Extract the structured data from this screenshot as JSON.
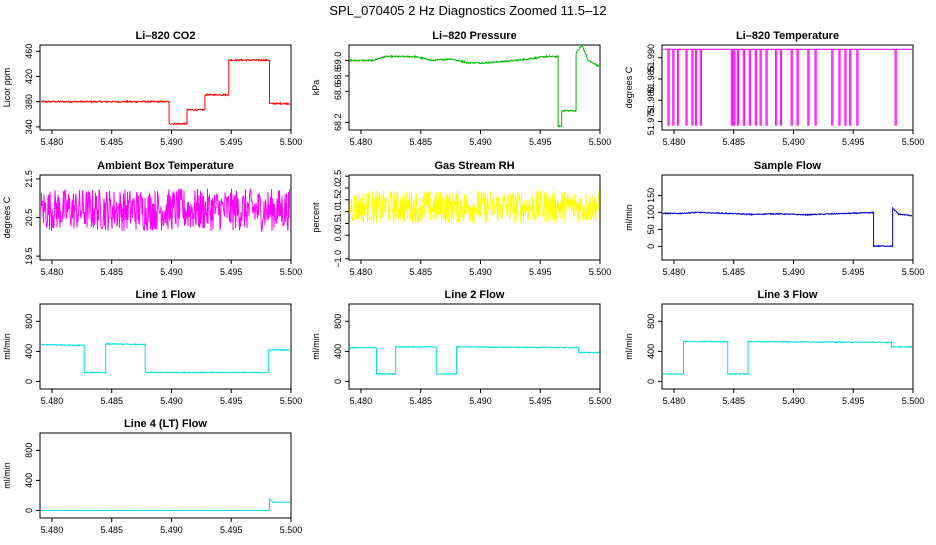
{
  "figure": {
    "title": "SPL_070405  2 Hz Diagnostics Zoomed 11.5–12"
  },
  "chart_data": [
    {
      "type": "line",
      "title": "Li–820 CO2",
      "ylabel": "Licor ppm",
      "color": "#ff0000",
      "xlim": [
        5.479,
        5.5
      ],
      "ylim": [
        335,
        470
      ],
      "xticks": [
        "5.480",
        "5.485",
        "5.490",
        "5.495",
        "5.500"
      ],
      "yticks": [
        "340",
        "380",
        "420",
        "460"
      ],
      "series": [
        {
          "segments": [
            [
              5.479,
              380
            ],
            [
              5.4898,
              380
            ],
            [
              5.4898,
              345
            ],
            [
              5.4913,
              345
            ],
            [
              5.4913,
              367
            ],
            [
              5.4928,
              367
            ],
            [
              5.4928,
              391
            ],
            [
              5.4948,
              391
            ],
            [
              5.4948,
              446
            ],
            [
              5.4982,
              446
            ],
            [
              5.4982,
              377
            ],
            [
              5.5,
              377
            ]
          ],
          "noise": 1.2
        }
      ]
    },
    {
      "type": "line",
      "title": "Li–820 Pressure",
      "ylabel": "kPa",
      "color": "#00bb00",
      "xlim": [
        5.479,
        5.5
      ],
      "ylim": [
        68.1,
        69.2
      ],
      "xticks": [
        "5.480",
        "5.485",
        "5.490",
        "5.495",
        "5.500"
      ],
      "yticks": [
        "68.2",
        "68.6",
        "68.8",
        "69.0"
      ],
      "series": [
        {
          "segments": [
            [
              5.479,
              69.0
            ],
            [
              5.481,
              69.0
            ],
            [
              5.482,
              69.05
            ],
            [
              5.4845,
              69.05
            ],
            [
              5.486,
              69.0
            ],
            [
              5.4875,
              69.02
            ],
            [
              5.489,
              68.97
            ],
            [
              5.4905,
              68.97
            ],
            [
              5.493,
              69.0
            ],
            [
              5.4955,
              69.05
            ],
            [
              5.4965,
              69.05
            ],
            [
              5.4965,
              68.15
            ],
            [
              5.4968,
              68.15
            ],
            [
              5.4968,
              68.35
            ],
            [
              5.498,
              68.35
            ],
            [
              5.498,
              69.1
            ],
            [
              5.4985,
              69.2
            ],
            [
              5.499,
              69.0
            ],
            [
              5.5,
              68.92
            ]
          ],
          "noise": 0.01
        }
      ]
    },
    {
      "type": "line",
      "title": "Li–820 Temperature",
      "ylabel": "degrees C",
      "color": "#ff00ff",
      "xlim": [
        5.479,
        5.5
      ],
      "ylim": [
        51.973,
        51.993
      ],
      "xticks": [
        "5.480",
        "5.485",
        "5.490",
        "5.495",
        "5.500"
      ],
      "yticks": [
        "51.975",
        "51.980",
        "51.985",
        "51.990"
      ],
      "series": [
        {
          "baseline": 51.992,
          "dips": [
            5.4795,
            5.4799,
            5.4803,
            5.481,
            5.4815,
            5.4818,
            5.4822,
            5.4848,
            5.485,
            5.4853,
            5.4858,
            5.4863,
            5.4868,
            5.4872,
            5.4877,
            5.4885,
            5.4889,
            5.4898,
            5.4903,
            5.4912,
            5.4918,
            5.4932,
            5.4938,
            5.4943,
            5.4947,
            5.4953,
            5.4985
          ],
          "dip_to": 51.974
        }
      ]
    },
    {
      "type": "line",
      "title": "Ambient Box Temperature",
      "ylabel": "degrees C",
      "color": "#ff00ff",
      "xlim": [
        5.479,
        5.5
      ],
      "ylim": [
        19.4,
        21.6
      ],
      "xticks": [
        "5.480",
        "5.485",
        "5.490",
        "5.495",
        "5.500"
      ],
      "yticks": [
        "19.5",
        "20.5",
        "21.5"
      ],
      "series": [
        {
          "segments": [
            [
              5.479,
              20.7
            ],
            [
              5.5,
              20.7
            ]
          ],
          "noise": 0.55
        }
      ]
    },
    {
      "type": "line",
      "title": "Gas Stream RH",
      "ylabel": "percent",
      "color": "#ffff00",
      "xlim": [
        5.479,
        5.5
      ],
      "ylim": [
        -1.05,
        2.55
      ],
      "xticks": [
        "5.480",
        "5.485",
        "5.490",
        "5.495",
        "5.500"
      ],
      "yticks": [
        "−1.0",
        "0.0",
        "0.5",
        "1.0",
        "1.5",
        "2.0",
        "2.5"
      ],
      "series": [
        {
          "segments": [
            [
              5.479,
              1.2
            ],
            [
              5.5,
              1.2
            ]
          ],
          "noise": 0.7
        }
      ]
    },
    {
      "type": "line",
      "title": "Sample Flow",
      "ylabel": "ml/min",
      "color": "#0000cc",
      "xlim": [
        5.479,
        5.5
      ],
      "ylim": [
        -40,
        210
      ],
      "xticks": [
        "5.480",
        "5.485",
        "5.490",
        "5.495",
        "5.500"
      ],
      "yticks": [
        "0",
        "50",
        "100",
        "150"
      ],
      "series": [
        {
          "segments": [
            [
              5.479,
              97
            ],
            [
              5.4805,
              97
            ],
            [
              5.482,
              100
            ],
            [
              5.4845,
              97
            ],
            [
              5.4865,
              94
            ],
            [
              5.4885,
              96
            ],
            [
              5.491,
              93
            ],
            [
              5.4935,
              96
            ],
            [
              5.4965,
              99
            ],
            [
              5.4967,
              99
            ],
            [
              5.4967,
              1
            ],
            [
              5.4983,
              1
            ],
            [
              5.4983,
              112
            ],
            [
              5.4988,
              95
            ],
            [
              5.5,
              90
            ]
          ],
          "noise": 1.5
        }
      ]
    },
    {
      "type": "line",
      "title": "Line 1 Flow",
      "ylabel": "ml/min",
      "color": "#00e0e0",
      "xlim": [
        5.479,
        5.5
      ],
      "ylim": [
        -100,
        1030
      ],
      "xticks": [
        "5.480",
        "5.485",
        "5.490",
        "5.495",
        "5.500"
      ],
      "yticks": [
        "0",
        "400",
        "800"
      ],
      "series": [
        {
          "segments": [
            [
              5.479,
              490
            ],
            [
              5.4827,
              480
            ],
            [
              5.4827,
              120
            ],
            [
              5.4845,
              120
            ],
            [
              5.4845,
              500
            ],
            [
              5.4878,
              490
            ],
            [
              5.4878,
              120
            ],
            [
              5.4981,
              120
            ],
            [
              5.4981,
              420
            ],
            [
              5.5,
              420
            ]
          ],
          "noise": 6
        }
      ]
    },
    {
      "type": "line",
      "title": "Line 2 Flow",
      "ylabel": "ml/min",
      "color": "#00e0e0",
      "xlim": [
        5.479,
        5.5
      ],
      "ylim": [
        -100,
        1030
      ],
      "xticks": [
        "5.480",
        "5.485",
        "5.490",
        "5.495",
        "5.500"
      ],
      "yticks": [
        "0",
        "400",
        "800"
      ],
      "series": [
        {
          "segments": [
            [
              5.479,
              450
            ],
            [
              5.4813,
              450
            ],
            [
              5.4813,
              100
            ],
            [
              5.4829,
              100
            ],
            [
              5.4829,
              460
            ],
            [
              5.4863,
              460
            ],
            [
              5.4863,
              100
            ],
            [
              5.488,
              100
            ],
            [
              5.488,
              460
            ],
            [
              5.4982,
              450
            ],
            [
              5.4982,
              385
            ],
            [
              5.5,
              385
            ]
          ],
          "noise": 6
        }
      ]
    },
    {
      "type": "line",
      "title": "Line 3 Flow",
      "ylabel": "ml/min",
      "color": "#00e0e0",
      "xlim": [
        5.479,
        5.5
      ],
      "ylim": [
        -100,
        1030
      ],
      "xticks": [
        "5.480",
        "5.485",
        "5.490",
        "5.495",
        "5.500"
      ],
      "yticks": [
        "0",
        "400",
        "800"
      ],
      "series": [
        {
          "segments": [
            [
              5.479,
              100
            ],
            [
              5.4808,
              100
            ],
            [
              5.4808,
              530
            ],
            [
              5.4845,
              530
            ],
            [
              5.4845,
              100
            ],
            [
              5.4862,
              100
            ],
            [
              5.4862,
              530
            ],
            [
              5.4982,
              520
            ],
            [
              5.4982,
              460
            ],
            [
              5.5,
              460
            ]
          ],
          "noise": 6
        }
      ]
    },
    {
      "type": "line",
      "title": "Line 4 (LT) Flow",
      "ylabel": "ml/min",
      "color": "#00e0e0",
      "xlim": [
        5.479,
        5.5
      ],
      "ylim": [
        -100,
        1030
      ],
      "xticks": [
        "5.480",
        "5.485",
        "5.490",
        "5.495",
        "5.500"
      ],
      "yticks": [
        "0",
        "400",
        "800"
      ],
      "series": [
        {
          "segments": [
            [
              5.479,
              0
            ],
            [
              5.4982,
              0
            ],
            [
              5.4982,
              160
            ],
            [
              5.4985,
              110
            ],
            [
              5.5,
              110
            ]
          ],
          "noise": 1.5
        }
      ]
    }
  ]
}
